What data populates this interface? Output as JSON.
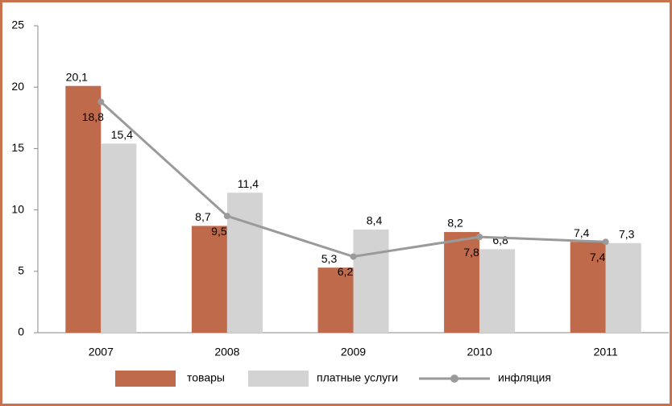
{
  "chart_data": {
    "type": "bar",
    "categories": [
      "2007",
      "2008",
      "2009",
      "2010",
      "2011"
    ],
    "series": [
      {
        "name": "товары",
        "color": "#bf6a4b",
        "values": [
          20.1,
          8.7,
          5.3,
          8.2,
          7.4
        ],
        "value_labels": [
          "20,1",
          "8,7",
          "5,3",
          "8,2",
          "7,4"
        ]
      },
      {
        "name": "платные услуги",
        "color": "#d3d3d3",
        "values": [
          15.4,
          11.4,
          8.4,
          6.8,
          7.3
        ],
        "value_labels": [
          "15,4",
          "11,4",
          "8,4",
          "6,8",
          "7,3"
        ]
      },
      {
        "name": "инфляция",
        "type": "line",
        "color": "#9a9a9a",
        "values": [
          18.8,
          9.5,
          6.2,
          7.8,
          7.4
        ],
        "value_labels": [
          "18,8",
          "9,5",
          "6,2",
          "7,8",
          "7,4"
        ]
      }
    ],
    "ylim": [
      0,
      25
    ],
    "yticks": [
      0,
      5,
      10,
      15,
      20,
      25
    ],
    "grid": false,
    "legend": "bottom"
  }
}
